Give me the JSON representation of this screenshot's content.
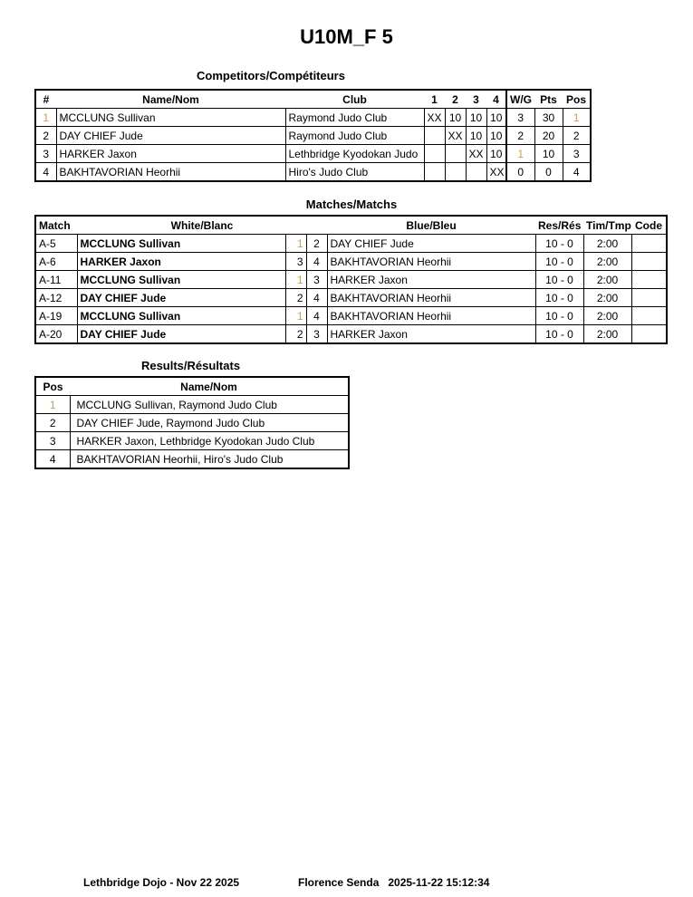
{
  "title": "U10M_F 5",
  "competitors": {
    "heading": "Competitors/Compétiteurs",
    "headers": [
      "#",
      "Name/Nom",
      "Club",
      "1",
      "2",
      "3",
      "4",
      "W/G",
      "Pts",
      "Pos"
    ],
    "rows": [
      [
        "1",
        "MCCLUNG Sullivan",
        "Raymond Judo Club",
        "XX",
        "10",
        "10",
        "10",
        "3",
        "30",
        "1"
      ],
      [
        "2",
        "DAY CHIEF Jude",
        "Raymond Judo Club",
        "",
        "XX",
        "10",
        "10",
        "2",
        "20",
        "2"
      ],
      [
        "3",
        "HARKER Jaxon",
        "Lethbridge Kyodokan Judo",
        "",
        "",
        "XX",
        "10",
        "1",
        "10",
        "3"
      ],
      [
        "4",
        "BAKHTAVORIAN Heorhii",
        "Hiro's Judo Club",
        "",
        "",
        "",
        "XX",
        "0",
        "0",
        "4"
      ]
    ]
  },
  "matches": {
    "heading": "Matches/Matchs",
    "headers": [
      "Match",
      "White/Blanc",
      "Blue/Bleu",
      "Res/Rés",
      "Tim/Tmp",
      "Code"
    ],
    "rows": [
      [
        "A-5",
        "MCCLUNG Sullivan",
        "1",
        "2",
        "DAY CHIEF Jude",
        "10 - 0",
        "2:00",
        ""
      ],
      [
        "A-6",
        "HARKER Jaxon",
        "3",
        "4",
        "BAKHTAVORIAN Heorhii",
        "10 - 0",
        "2:00",
        ""
      ],
      [
        "A-11",
        "MCCLUNG Sullivan",
        "1",
        "3",
        "HARKER Jaxon",
        "10 - 0",
        "2:00",
        ""
      ],
      [
        "A-12",
        "DAY CHIEF Jude",
        "2",
        "4",
        "BAKHTAVORIAN Heorhii",
        "10 - 0",
        "2:00",
        ""
      ],
      [
        "A-19",
        "MCCLUNG Sullivan",
        "1",
        "4",
        "BAKHTAVORIAN Heorhii",
        "10 - 0",
        "2:00",
        ""
      ],
      [
        "A-20",
        "DAY CHIEF Jude",
        "2",
        "3",
        "HARKER Jaxon",
        "10 - 0",
        "2:00",
        ""
      ]
    ]
  },
  "results": {
    "heading": "Results/Résultats",
    "headers": [
      "Pos",
      "Name/Nom"
    ],
    "rows": [
      [
        "1",
        "MCCLUNG Sullivan, Raymond Judo Club"
      ],
      [
        "2",
        "DAY CHIEF Jude, Raymond Judo Club"
      ],
      [
        "3",
        "HARKER Jaxon, Lethbridge Kyodokan Judo Club"
      ],
      [
        "4",
        "BAKHTAVORIAN Heorhii, Hiro's Judo Club"
      ]
    ]
  },
  "footer": {
    "left": "Lethbridge Dojo - Nov 22 2025",
    "right": "Florence Senda   2025-11-22 15:12:34"
  }
}
